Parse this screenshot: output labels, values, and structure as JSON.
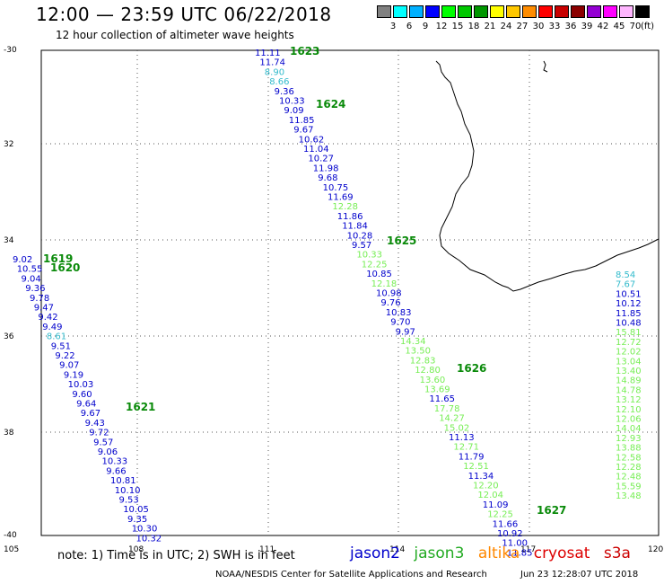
{
  "header": {
    "title": "12:00 — 23:59 UTC 06/22/2018",
    "subtitle": "12 hour collection of altimeter wave heights"
  },
  "colorbar": {
    "colors": [
      "#808080",
      "#00ffff",
      "#00b0ff",
      "#0000ff",
      "#00ff00",
      "#00c800",
      "#009600",
      "#ffff00",
      "#ffc800",
      "#ff8c00",
      "#ff0000",
      "#c80000",
      "#8b0000",
      "#9400d3",
      "#ff00ff",
      "#ffb6ff",
      "#000000"
    ],
    "labels": [
      "3",
      "6",
      "9",
      "12",
      "15",
      "18",
      "21",
      "24",
      "27",
      "30",
      "33",
      "36",
      "39",
      "42",
      "45",
      "70"
    ],
    "unit": "(ft)"
  },
  "map": {
    "lat_ticks": [
      "-30",
      "32",
      "34",
      "36",
      "38",
      "-40"
    ],
    "lon_ticks": [
      "105",
      "108",
      "111",
      "114",
      "117",
      "120"
    ]
  },
  "satellite_colors": {
    "jason2": "#0000cc",
    "jason3": "#22aa22",
    "altika": "#ff8800",
    "cryosat": "#dd0000",
    "s3a": "#cc0000",
    "cyan": "#33bbcc",
    "light_green": "#77ee55"
  },
  "tracks": [
    {
      "id": "1619",
      "color": "#0000cc",
      "points": [
        [
          "9.02",
          "blue"
        ],
        [
          "10.55",
          "blue"
        ],
        [
          "9.04",
          "blue"
        ],
        [
          "9.36",
          "blue"
        ],
        [
          "9.78",
          "blue"
        ],
        [
          "9.47",
          "blue"
        ],
        [
          "9.42",
          "blue"
        ],
        [
          "9.49",
          "blue"
        ],
        [
          "8.61",
          "cyan"
        ],
        [
          "9.51",
          "blue"
        ],
        [
          "9.22",
          "blue"
        ],
        [
          "9.07",
          "blue"
        ],
        [
          "9.19",
          "blue"
        ],
        [
          "10.03",
          "blue"
        ],
        [
          "9.60",
          "blue"
        ],
        [
          "9.64",
          "blue"
        ],
        [
          "9.67",
          "blue"
        ],
        [
          "9.43",
          "blue"
        ],
        [
          "9.72",
          "blue"
        ],
        [
          "9.57",
          "blue"
        ],
        [
          "9.06",
          "blue"
        ],
        [
          "10.33",
          "blue"
        ],
        [
          "9.66",
          "blue"
        ],
        [
          "10.81",
          "blue"
        ],
        [
          "10.10",
          "blue"
        ],
        [
          "9.53",
          "blue"
        ],
        [
          "10.05",
          "blue"
        ],
        [
          "9.35",
          "blue"
        ],
        [
          "10.30",
          "blue"
        ],
        [
          "10.32",
          "blue"
        ]
      ]
    },
    {
      "id": "1623",
      "points": [
        [
          "11.11",
          "blue"
        ],
        [
          "11.74",
          "blue"
        ],
        [
          "8.90",
          "cyan"
        ],
        [
          "8.66",
          "cyan"
        ],
        [
          "9.36",
          "blue"
        ],
        [
          "10.33",
          "blue"
        ],
        [
          "9.09",
          "blue"
        ],
        [
          "11.85",
          "blue"
        ],
        [
          "9.67",
          "blue"
        ],
        [
          "10.62",
          "blue"
        ],
        [
          "11.04",
          "blue"
        ],
        [
          "10.27",
          "blue"
        ],
        [
          "11.98",
          "blue"
        ],
        [
          "9.68",
          "blue"
        ],
        [
          "10.75",
          "blue"
        ],
        [
          "11.69",
          "blue"
        ],
        [
          "12.28",
          "green"
        ],
        [
          "11.86",
          "blue"
        ],
        [
          "11.84",
          "blue"
        ],
        [
          "10.28",
          "blue"
        ],
        [
          "9.57",
          "blue"
        ],
        [
          "10.33",
          "green"
        ],
        [
          "12.25",
          "green"
        ],
        [
          "10.85",
          "blue"
        ],
        [
          "12.18",
          "green"
        ],
        [
          "10.98",
          "blue"
        ],
        [
          "9.76",
          "blue"
        ],
        [
          "10.83",
          "blue"
        ],
        [
          "9.70",
          "blue"
        ],
        [
          "9.97",
          "blue"
        ],
        [
          "14.34",
          "green"
        ],
        [
          "13.50",
          "green"
        ],
        [
          "12.83",
          "green"
        ],
        [
          "12.80",
          "green"
        ],
        [
          "13.60",
          "green"
        ],
        [
          "13.69",
          "green"
        ],
        [
          "11.65",
          "blue"
        ],
        [
          "17.78",
          "green"
        ],
        [
          "14.27",
          "green"
        ],
        [
          "15.02",
          "green"
        ],
        [
          "11.13",
          "blue"
        ],
        [
          "12.71",
          "green"
        ],
        [
          "11.79",
          "blue"
        ],
        [
          "12.51",
          "green"
        ],
        [
          "11.34",
          "blue"
        ],
        [
          "12.20",
          "green"
        ],
        [
          "12.04",
          "green"
        ],
        [
          "11.09",
          "blue"
        ],
        [
          "12.25",
          "green"
        ],
        [
          "11.66",
          "blue"
        ],
        [
          "10.92",
          "blue"
        ],
        [
          "11.00",
          "blue"
        ],
        [
          "11.85",
          "blue"
        ]
      ]
    },
    {
      "id": "east",
      "points": [
        [
          "8.54",
          "cyan"
        ],
        [
          "7.67",
          "cyan"
        ],
        [
          "10.51",
          "blue"
        ],
        [
          "10.12",
          "blue"
        ],
        [
          "11.85",
          "blue"
        ],
        [
          "10.48",
          "blue"
        ],
        [
          "15.81",
          "green"
        ],
        [
          "12.72",
          "green"
        ],
        [
          "12.02",
          "green"
        ],
        [
          "13.04",
          "green"
        ],
        [
          "13.40",
          "green"
        ],
        [
          "14.89",
          "green"
        ],
        [
          "14.78",
          "green"
        ],
        [
          "13.12",
          "green"
        ],
        [
          "12.10",
          "green"
        ],
        [
          "12.06",
          "green"
        ],
        [
          "14.04",
          "green"
        ],
        [
          "12.93",
          "green"
        ],
        [
          "13.88",
          "green"
        ],
        [
          "12.58",
          "green"
        ],
        [
          "12.28",
          "green"
        ],
        [
          "12.48",
          "green"
        ],
        [
          "15.59",
          "green"
        ],
        [
          "13.48",
          "green"
        ]
      ]
    }
  ],
  "track_labels": [
    "1623",
    "1624",
    "1625",
    "1626",
    "1627",
    "1619",
    "1620",
    "1621"
  ],
  "legend": {
    "note": "note: 1) Time is in UTC; 2) SWH is in feet",
    "sats": [
      "jason2",
      "jason3",
      "altika",
      "cryosat",
      "s3a"
    ]
  },
  "footer": {
    "credit": "NOAA/NESDIS Center for Satellite Applications and Research",
    "timestamp": "Jun 23 12:28:07 UTC 2018"
  }
}
